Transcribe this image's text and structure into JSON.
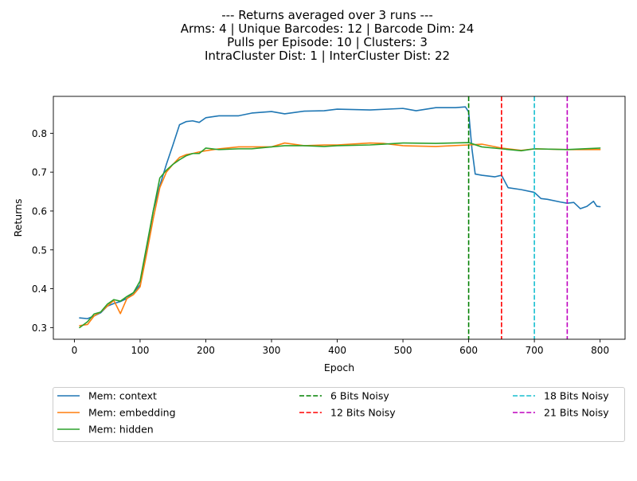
{
  "chart_data": {
    "type": "line",
    "title_lines": [
      "--- Returns averaged over 3 runs ---",
      "Arms: 4 | Unique Barcodes: 12 | Barcode Dim: 24",
      "Pulls per Episode: 10 | Clusters: 3",
      "IntraCluster Dist: 1 | InterCluster Dist: 22"
    ],
    "xlabel": "Epoch",
    "ylabel": "Returns",
    "xlim": [
      -32,
      838
    ],
    "ylim": [
      0.27,
      0.895
    ],
    "xticks": [
      0,
      100,
      200,
      300,
      400,
      500,
      600,
      700,
      800
    ],
    "xtick_labels": [
      "0",
      "100",
      "200",
      "300",
      "400",
      "500",
      "600",
      "700",
      "800"
    ],
    "yticks": [
      0.3,
      0.4,
      0.5,
      0.6,
      0.7,
      0.8
    ],
    "ytick_labels": [
      "0.3",
      "0.4",
      "0.5",
      "0.6",
      "0.7",
      "0.8"
    ],
    "grid": false,
    "legend_position": "below",
    "series": [
      {
        "name": "Mem: context",
        "color": "#1f77b4",
        "style": "solid",
        "x": [
          8,
          20,
          30,
          40,
          50,
          60,
          70,
          80,
          90,
          100,
          110,
          120,
          130,
          140,
          150,
          160,
          170,
          180,
          190,
          200,
          220,
          250,
          270,
          300,
          320,
          350,
          380,
          400,
          450,
          500,
          520,
          550,
          580,
          595,
          600,
          605,
          610,
          620,
          640,
          650,
          660,
          680,
          700,
          710,
          720,
          740,
          750,
          760,
          770,
          780,
          790,
          795,
          800
        ],
        "y": [
          0.325,
          0.323,
          0.33,
          0.338,
          0.355,
          0.362,
          0.367,
          0.375,
          0.39,
          0.41,
          0.5,
          0.6,
          0.665,
          0.72,
          0.77,
          0.822,
          0.83,
          0.832,
          0.828,
          0.84,
          0.845,
          0.845,
          0.852,
          0.856,
          0.85,
          0.857,
          0.858,
          0.862,
          0.86,
          0.864,
          0.858,
          0.866,
          0.866,
          0.868,
          0.855,
          0.76,
          0.695,
          0.692,
          0.688,
          0.692,
          0.66,
          0.655,
          0.648,
          0.632,
          0.63,
          0.623,
          0.62,
          0.622,
          0.606,
          0.612,
          0.625,
          0.612,
          0.611
        ]
      },
      {
        "name": "Mem: embedding",
        "color": "#ff7f0e",
        "style": "solid",
        "x": [
          8,
          20,
          30,
          40,
          50,
          60,
          70,
          80,
          90,
          100,
          110,
          120,
          130,
          140,
          150,
          160,
          170,
          180,
          190,
          200,
          220,
          250,
          270,
          300,
          320,
          350,
          380,
          400,
          450,
          470,
          500,
          550,
          600,
          620,
          650,
          680,
          700,
          750,
          800
        ],
        "y": [
          0.305,
          0.308,
          0.33,
          0.34,
          0.355,
          0.37,
          0.336,
          0.375,
          0.385,
          0.405,
          0.49,
          0.58,
          0.66,
          0.7,
          0.72,
          0.738,
          0.745,
          0.748,
          0.752,
          0.755,
          0.76,
          0.765,
          0.765,
          0.765,
          0.775,
          0.768,
          0.77,
          0.77,
          0.775,
          0.774,
          0.768,
          0.766,
          0.77,
          0.772,
          0.762,
          0.756,
          0.76,
          0.758,
          0.758
        ]
      },
      {
        "name": "Mem: hidden",
        "color": "#2ca02c",
        "style": "solid",
        "x": [
          8,
          20,
          30,
          40,
          50,
          60,
          70,
          80,
          90,
          100,
          110,
          120,
          130,
          140,
          150,
          160,
          170,
          180,
          190,
          200,
          220,
          250,
          270,
          300,
          320,
          350,
          380,
          400,
          450,
          470,
          500,
          550,
          600,
          620,
          650,
          680,
          700,
          750,
          800
        ],
        "y": [
          0.3,
          0.315,
          0.335,
          0.34,
          0.36,
          0.372,
          0.368,
          0.38,
          0.39,
          0.42,
          0.51,
          0.6,
          0.685,
          0.705,
          0.72,
          0.732,
          0.742,
          0.748,
          0.748,
          0.762,
          0.758,
          0.76,
          0.76,
          0.765,
          0.768,
          0.768,
          0.766,
          0.768,
          0.77,
          0.772,
          0.775,
          0.774,
          0.776,
          0.765,
          0.76,
          0.755,
          0.76,
          0.758,
          0.762
        ]
      }
    ],
    "vlines": [
      {
        "name": "6 Bits Noisy",
        "x": 600,
        "color": "#008000"
      },
      {
        "name": "12 Bits Noisy",
        "x": 650,
        "color": "#ff0000"
      },
      {
        "name": "18 Bits Noisy",
        "x": 700,
        "color": "#17becf"
      },
      {
        "name": "21 Bits Noisy",
        "x": 750,
        "color": "#bf00bf"
      }
    ],
    "legend": [
      {
        "label": "Mem: context",
        "color": "#1f77b4",
        "style": "solid"
      },
      {
        "label": "Mem: embedding",
        "color": "#ff7f0e",
        "style": "solid"
      },
      {
        "label": "Mem: hidden",
        "color": "#2ca02c",
        "style": "solid"
      },
      {
        "label": "6 Bits Noisy",
        "color": "#008000",
        "style": "dashed"
      },
      {
        "label": "12 Bits Noisy",
        "color": "#ff0000",
        "style": "dashed"
      },
      {
        "label": "18 Bits Noisy",
        "color": "#17becf",
        "style": "dashed"
      },
      {
        "label": "21 Bits Noisy",
        "color": "#bf00bf",
        "style": "dashed"
      }
    ]
  }
}
